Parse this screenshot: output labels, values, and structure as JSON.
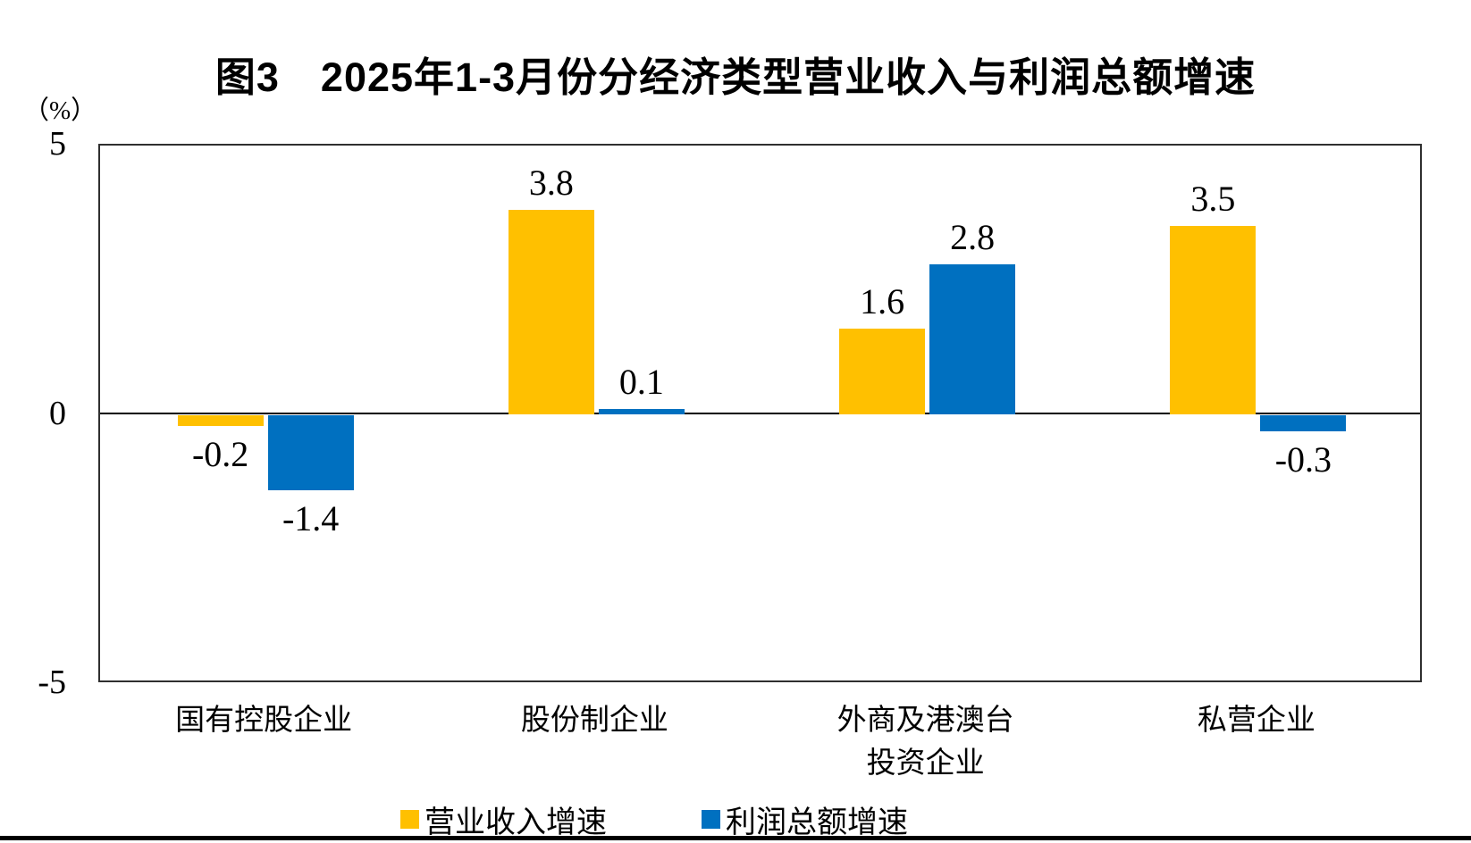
{
  "chart_data": {
    "type": "bar",
    "title": "图3　2025年1-3月份分经济类型营业收入与利润总额增速",
    "ylabel": "（%）",
    "xlabel": "",
    "ylim": [
      -5,
      5
    ],
    "yticks": [
      5,
      0,
      -5
    ],
    "grid": false,
    "legend_position": "bottom",
    "bar_label_format": "one-decimal",
    "categories": [
      "国有控股企业",
      "股份制企业",
      "外商及港澳台\n投资企业",
      "私营企业"
    ],
    "series": [
      {
        "id": "operating-revenue-growth",
        "name": "营业收入增速",
        "color": "#FFC000",
        "values": [
          -0.2,
          3.8,
          1.6,
          3.5
        ]
      },
      {
        "id": "total-profit-growth",
        "name": "利润总额增速",
        "color": "#0070C0",
        "values": [
          -1.4,
          0.1,
          2.8,
          -0.3
        ]
      }
    ]
  }
}
